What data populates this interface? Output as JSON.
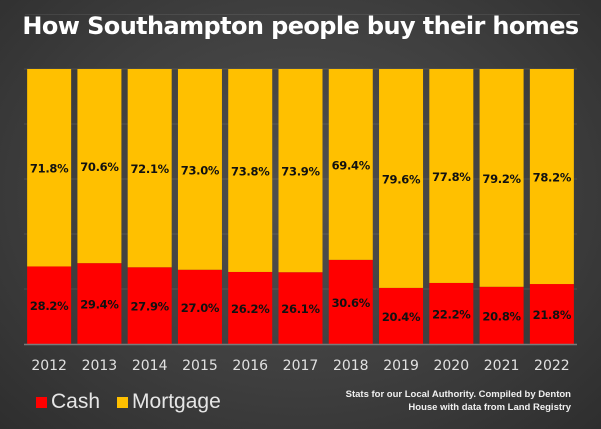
{
  "chart_data": {
    "type": "bar",
    "stacked": true,
    "percent_stacked": true,
    "title": "How Southampton people buy their homes",
    "xlabel": "",
    "ylabel": "",
    "ylim": [
      0,
      100
    ],
    "grid": true,
    "legend_position": "bottom-left",
    "categories": [
      "2012",
      "2013",
      "2014",
      "2015",
      "2016",
      "2017",
      "2018",
      "2019",
      "2020",
      "2021",
      "2022"
    ],
    "series": [
      {
        "name": "Cash",
        "color": "#FF0000",
        "values": [
          28.2,
          29.4,
          27.9,
          27.0,
          26.2,
          26.1,
          30.6,
          20.4,
          22.2,
          20.8,
          21.8
        ],
        "labels": [
          "28.2%",
          "29.4%",
          "27.9%",
          "27.0%",
          "26.2%",
          "26.1%",
          "30.6%",
          "20.4%",
          "22.2%",
          "20.8%",
          "21.8%"
        ]
      },
      {
        "name": "Mortgage",
        "color": "#FFC000",
        "values": [
          71.8,
          70.6,
          72.1,
          73.0,
          73.8,
          73.9,
          69.4,
          79.6,
          77.8,
          79.2,
          78.2
        ],
        "labels": [
          "71.8%",
          "70.6%",
          "72.1%",
          "73.0%",
          "73.8%",
          "73.9%",
          "69.4%",
          "79.6%",
          "77.8%",
          "79.2%",
          "78.2%"
        ]
      }
    ],
    "note": [
      "Stats for our Local Authority. Compiled by Denton",
      "House with data from Land Registry"
    ]
  }
}
